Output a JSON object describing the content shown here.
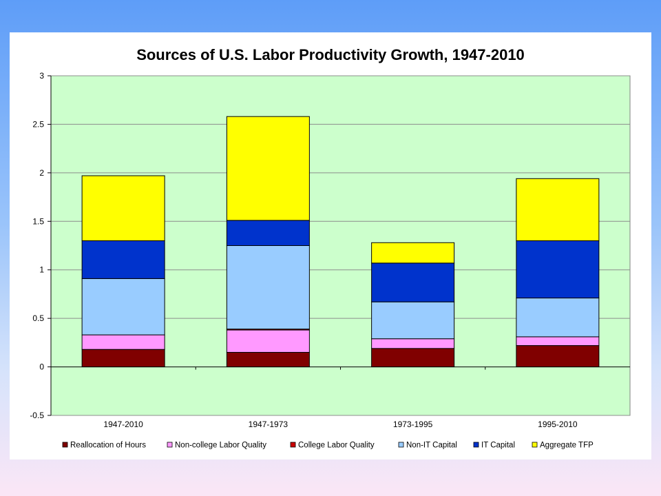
{
  "chart_data": {
    "type": "bar",
    "stacked": true,
    "title": "Sources of U.S. Labor Productivity Growth, 1947-2010",
    "xlabel": "",
    "ylabel": "",
    "ylim": [
      -0.5,
      3
    ],
    "yticks": [
      "-0.5",
      "0",
      "0.5",
      "1",
      "1.5",
      "2",
      "2.5",
      "3"
    ],
    "grid": true,
    "legend_position": "bottom",
    "plot_background": "#ccffcc",
    "categories": [
      "1947-2010",
      "1947-1973",
      "1973-1995",
      "1995-2010"
    ],
    "series": [
      {
        "name": "Reallocation of Hours",
        "color": "#800000",
        "values": [
          0.18,
          0.15,
          0.19,
          0.22
        ]
      },
      {
        "name": "Non-college Labor Quality",
        "color": "#ff99ff",
        "values": [
          0.15,
          0.23,
          0.1,
          0.09
        ]
      },
      {
        "name": "College Labor Quality",
        "color": "#cc0000",
        "values": [
          0.0,
          0.01,
          0.0,
          0.0
        ]
      },
      {
        "name": "Non-IT Capital",
        "color": "#99ccff",
        "values": [
          0.58,
          0.86,
          0.38,
          0.4
        ]
      },
      {
        "name": "IT Capital",
        "color": "#0033cc",
        "values": [
          0.39,
          0.26,
          0.4,
          0.59
        ]
      },
      {
        "name": "Aggregate TFP",
        "color": "#ffff00",
        "values": [
          0.67,
          1.07,
          0.21,
          0.64
        ]
      }
    ]
  }
}
